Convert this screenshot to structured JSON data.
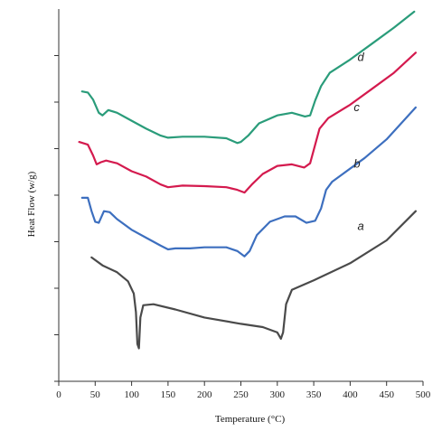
{
  "chart_data": {
    "type": "line",
    "title": "",
    "xlabel": "Temperature (°C)",
    "ylabel": "Heat Flow (w/g)",
    "xlim": [
      0,
      500
    ],
    "ylim": [
      0,
      7
    ],
    "x_ticks": [
      0,
      50,
      100,
      150,
      200,
      250,
      300,
      350,
      400,
      450,
      500
    ],
    "y_ticks_labeled": false,
    "y_tick_count": 8,
    "grid": false,
    "legend": "inline labels at right",
    "series": [
      {
        "name": "a",
        "color": "#4a4a4a",
        "points": [
          [
            45,
            2.33
          ],
          [
            60,
            2.18
          ],
          [
            80,
            2.05
          ],
          [
            95,
            1.88
          ],
          [
            103,
            1.65
          ],
          [
            106,
            1.3
          ],
          [
            108,
            0.7
          ],
          [
            110,
            0.62
          ],
          [
            112,
            1.2
          ],
          [
            116,
            1.43
          ],
          [
            130,
            1.45
          ],
          [
            160,
            1.35
          ],
          [
            200,
            1.2
          ],
          [
            250,
            1.08
          ],
          [
            280,
            1.02
          ],
          [
            300,
            0.92
          ],
          [
            305,
            0.8
          ],
          [
            308,
            0.92
          ],
          [
            312,
            1.45
          ],
          [
            320,
            1.72
          ],
          [
            350,
            1.9
          ],
          [
            400,
            2.22
          ],
          [
            450,
            2.65
          ],
          [
            490,
            3.2
          ]
        ]
      },
      {
        "name": "b",
        "color": "#3d6fbf",
        "points": [
          [
            32,
            3.45
          ],
          [
            40,
            3.45
          ],
          [
            45,
            3.2
          ],
          [
            50,
            3.0
          ],
          [
            55,
            2.98
          ],
          [
            62,
            3.2
          ],
          [
            70,
            3.18
          ],
          [
            80,
            3.05
          ],
          [
            100,
            2.85
          ],
          [
            120,
            2.7
          ],
          [
            140,
            2.55
          ],
          [
            150,
            2.48
          ],
          [
            160,
            2.5
          ],
          [
            180,
            2.5
          ],
          [
            200,
            2.52
          ],
          [
            230,
            2.52
          ],
          [
            245,
            2.45
          ],
          [
            255,
            2.35
          ],
          [
            262,
            2.45
          ],
          [
            272,
            2.75
          ],
          [
            290,
            3.0
          ],
          [
            310,
            3.1
          ],
          [
            325,
            3.1
          ],
          [
            340,
            2.98
          ],
          [
            352,
            3.02
          ],
          [
            360,
            3.25
          ],
          [
            367,
            3.6
          ],
          [
            375,
            3.75
          ],
          [
            390,
            3.9
          ],
          [
            420,
            4.2
          ],
          [
            450,
            4.55
          ],
          [
            490,
            5.15
          ]
        ]
      },
      {
        "name": "c",
        "color": "#d41a4e",
        "points": [
          [
            28,
            4.5
          ],
          [
            40,
            4.45
          ],
          [
            47,
            4.25
          ],
          [
            52,
            4.08
          ],
          [
            58,
            4.12
          ],
          [
            65,
            4.15
          ],
          [
            80,
            4.1
          ],
          [
            100,
            3.95
          ],
          [
            120,
            3.85
          ],
          [
            140,
            3.7
          ],
          [
            150,
            3.65
          ],
          [
            170,
            3.68
          ],
          [
            200,
            3.67
          ],
          [
            230,
            3.65
          ],
          [
            245,
            3.6
          ],
          [
            255,
            3.55
          ],
          [
            265,
            3.7
          ],
          [
            280,
            3.9
          ],
          [
            300,
            4.05
          ],
          [
            320,
            4.08
          ],
          [
            337,
            4.02
          ],
          [
            345,
            4.1
          ],
          [
            352,
            4.45
          ],
          [
            358,
            4.75
          ],
          [
            370,
            4.95
          ],
          [
            400,
            5.2
          ],
          [
            430,
            5.5
          ],
          [
            460,
            5.8
          ],
          [
            490,
            6.18
          ]
        ]
      },
      {
        "name": "d",
        "color": "#2a9c7a",
        "points": [
          [
            32,
            5.45
          ],
          [
            40,
            5.43
          ],
          [
            47,
            5.3
          ],
          [
            55,
            5.05
          ],
          [
            60,
            5.0
          ],
          [
            68,
            5.1
          ],
          [
            80,
            5.05
          ],
          [
            100,
            4.9
          ],
          [
            120,
            4.75
          ],
          [
            140,
            4.62
          ],
          [
            150,
            4.58
          ],
          [
            170,
            4.6
          ],
          [
            200,
            4.6
          ],
          [
            230,
            4.57
          ],
          [
            245,
            4.48
          ],
          [
            250,
            4.5
          ],
          [
            260,
            4.62
          ],
          [
            275,
            4.85
          ],
          [
            300,
            5.0
          ],
          [
            320,
            5.05
          ],
          [
            338,
            4.98
          ],
          [
            345,
            5.0
          ],
          [
            352,
            5.28
          ],
          [
            360,
            5.55
          ],
          [
            372,
            5.8
          ],
          [
            400,
            6.05
          ],
          [
            430,
            6.35
          ],
          [
            460,
            6.65
          ],
          [
            488,
            6.95
          ]
        ]
      }
    ],
    "labels": [
      {
        "text": "a",
        "x": 410,
        "y": 2.85
      },
      {
        "text": "b",
        "x": 405,
        "y": 4.02
      },
      {
        "text": "c",
        "x": 405,
        "y": 5.08
      },
      {
        "text": "d",
        "x": 410,
        "y": 6.02
      }
    ]
  }
}
